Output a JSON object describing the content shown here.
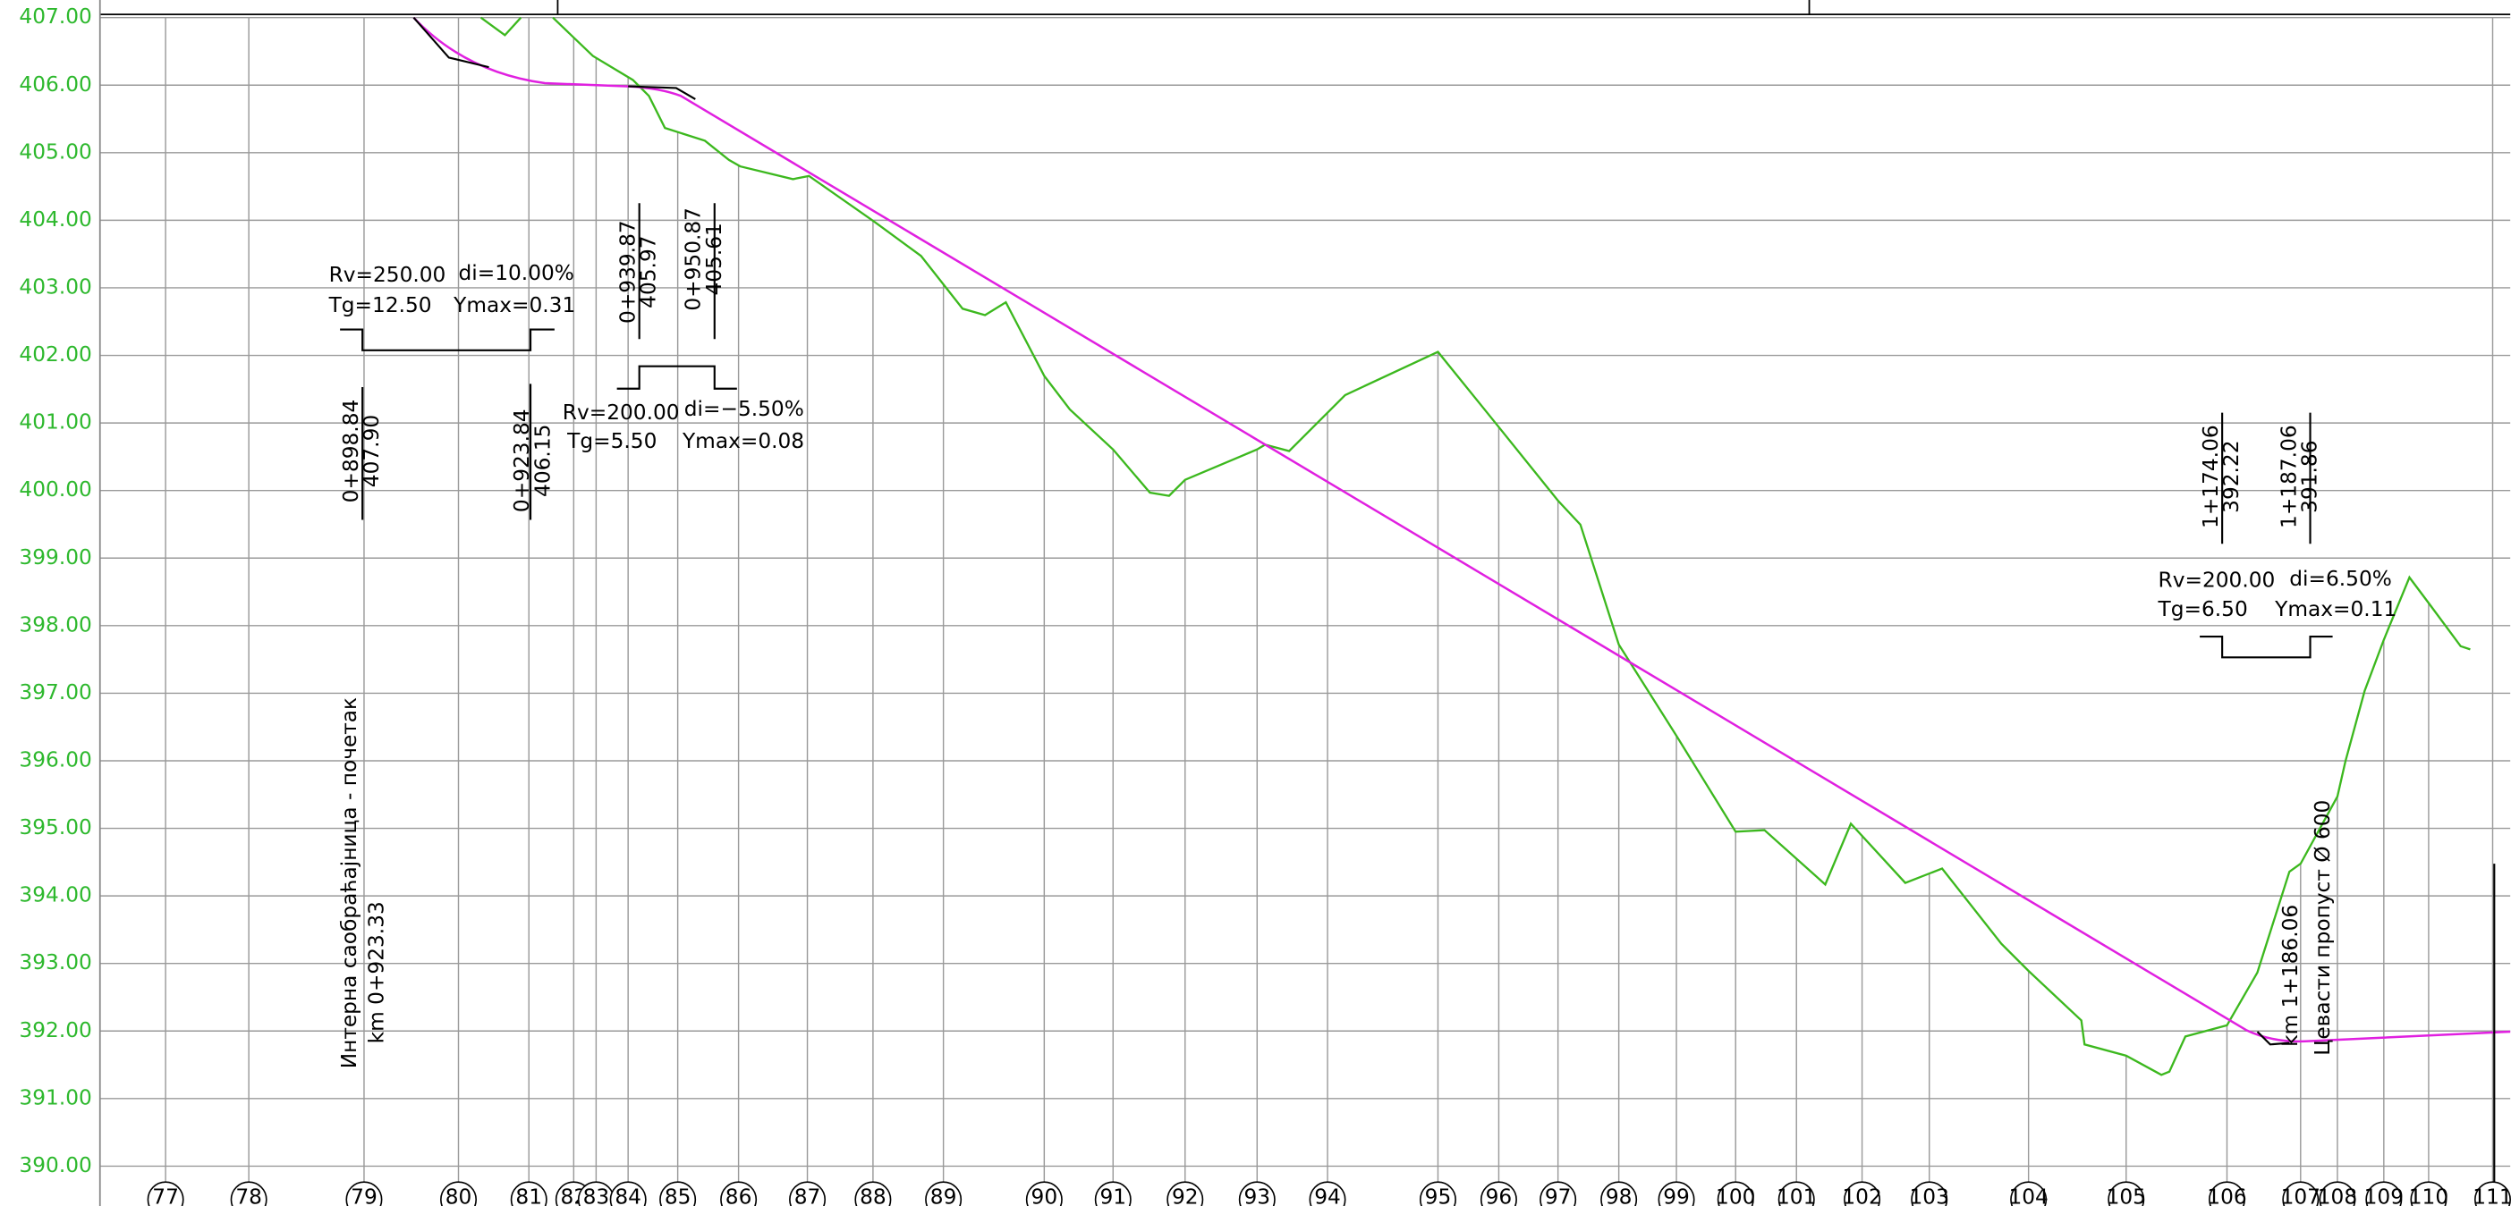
{
  "y_axis_labels": [
    "407.00",
    "406.00",
    "405.00",
    "404.00",
    "403.00",
    "402.00",
    "401.00",
    "400.00",
    "399.00",
    "398.00",
    "397.00",
    "396.00",
    "395.00",
    "394.00",
    "393.00",
    "392.00",
    "391.00",
    "390.00"
  ],
  "stations": [
    "77",
    "78",
    "79",
    "80",
    "81",
    "82",
    "83",
    "84",
    "85",
    "86",
    "87",
    "88",
    "89",
    "90",
    "91",
    "92",
    "93",
    "94",
    "95",
    "96",
    "97",
    "98",
    "99",
    "100",
    "101",
    "102",
    "103",
    "104",
    "105",
    "106",
    "107",
    "108",
    "109",
    "110",
    "111"
  ],
  "curve_1": {
    "rv": "Rv=250.00",
    "di": "di=10.00%",
    "tg": "Tg=12.50",
    "ymax": "Ymax=0.31",
    "start_station": "0+898.84",
    "start_elevation": "407.90",
    "end_station": "0+923.84",
    "end_elevation": "406.15"
  },
  "curve_2": {
    "rv": "Rv=200.00",
    "di": "di=−5.50%",
    "tg": "Tg=5.50",
    "ymax": "Ymax=0.08",
    "start_station": "0+939.87",
    "start_elevation": "405.97",
    "end_station": "0+950.87",
    "end_elevation": "405.61"
  },
  "curve_3": {
    "rv": "Rv=200.00",
    "di": "di=6.50%",
    "tg": "Tg=6.50",
    "ymax": "Ymax=0.11",
    "start_station": "1+174.06",
    "start_elevation": "392.22",
    "end_station": "1+187.06",
    "end_elevation": "391.86"
  },
  "notes": {
    "road_start": "Интерна саобраћајница - почетак",
    "road_start_km": "km 0+923.33",
    "culvert_km": "km 1+186.06",
    "culvert": "Цевасти пропуст Ø 600"
  }
}
